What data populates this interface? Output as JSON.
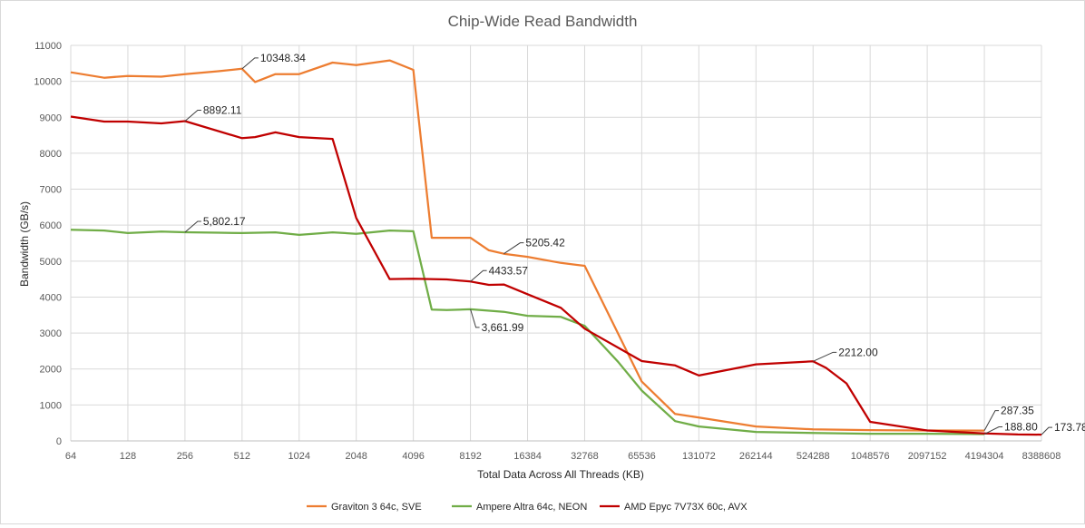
{
  "chart_data": {
    "type": "line",
    "title": "Chip-Wide Read Bandwidth",
    "xlabel": "Total Data Across All Threads (KB)",
    "ylabel": "Bandwidth (GB/s)",
    "x_scale": "log2",
    "xlim": [
      64,
      8388608
    ],
    "ylim": [
      0,
      11000
    ],
    "x_ticks": [
      64,
      128,
      256,
      512,
      1024,
      2048,
      4096,
      8192,
      16384,
      32768,
      65536,
      131072,
      262144,
      524288,
      1048576,
      2097152,
      4194304,
      8388608
    ],
    "x_tick_labels": [
      "64",
      "128",
      "256",
      "512",
      "1024",
      "2048",
      "4096",
      "8192",
      "16384",
      "32768",
      "65536",
      "131072",
      "262144",
      "524288",
      "1048576",
      "2097152",
      "4194304",
      "8388608"
    ],
    "y_ticks": [
      0,
      1000,
      2000,
      3000,
      4000,
      5000,
      6000,
      7000,
      8000,
      9000,
      10000,
      11000
    ],
    "y_tick_labels": [
      "0",
      "1000",
      "2000",
      "3000",
      "4000",
      "5000",
      "6000",
      "7000",
      "8000",
      "9000",
      "10000",
      "11000"
    ],
    "grid": "horizontal and vertical",
    "legend_position": "bottom",
    "series": [
      {
        "name": "Graviton 3 64c, SVE",
        "color": "#ed7d31",
        "points": [
          [
            64,
            10250
          ],
          [
            96,
            10100
          ],
          [
            128,
            10150
          ],
          [
            192,
            10130
          ],
          [
            256,
            10200
          ],
          [
            384,
            10280
          ],
          [
            512,
            10348.34
          ],
          [
            600,
            9980
          ],
          [
            768,
            10200
          ],
          [
            1024,
            10200
          ],
          [
            1536,
            10520
          ],
          [
            2048,
            10450
          ],
          [
            3072,
            10580
          ],
          [
            4096,
            10320
          ],
          [
            5120,
            5650
          ],
          [
            6144,
            5650
          ],
          [
            8192,
            5650
          ],
          [
            10240,
            5300
          ],
          [
            12288,
            5205.42
          ],
          [
            16384,
            5120
          ],
          [
            24576,
            4950
          ],
          [
            32768,
            4870
          ],
          [
            65536,
            1650
          ],
          [
            98304,
            750
          ],
          [
            131072,
            650
          ],
          [
            262144,
            400
          ],
          [
            524288,
            320
          ],
          [
            1048576,
            300
          ],
          [
            2097152,
            290
          ],
          [
            4194304,
            287.35
          ]
        ]
      },
      {
        "name": "Ampere Altra 64c, NEON",
        "color": "#70ad47",
        "points": [
          [
            64,
            5870
          ],
          [
            96,
            5850
          ],
          [
            128,
            5780
          ],
          [
            192,
            5820
          ],
          [
            256,
            5802.17
          ],
          [
            384,
            5790
          ],
          [
            512,
            5780
          ],
          [
            768,
            5800
          ],
          [
            1024,
            5730
          ],
          [
            1536,
            5800
          ],
          [
            2048,
            5760
          ],
          [
            3072,
            5850
          ],
          [
            4096,
            5830
          ],
          [
            5120,
            3650
          ],
          [
            6144,
            3640
          ],
          [
            8192,
            3661.99
          ],
          [
            12288,
            3590
          ],
          [
            16384,
            3480
          ],
          [
            24576,
            3450
          ],
          [
            32768,
            3200
          ],
          [
            49152,
            2200
          ],
          [
            65536,
            1400
          ],
          [
            98304,
            550
          ],
          [
            131072,
            400
          ],
          [
            262144,
            250
          ],
          [
            524288,
            220
          ],
          [
            1048576,
            200
          ],
          [
            2097152,
            200
          ],
          [
            4194304,
            188.8
          ]
        ]
      },
      {
        "name": "AMD Epyc 7V73X 60c, AVX",
        "color": "#c00000",
        "points": [
          [
            64,
            9020
          ],
          [
            96,
            8880
          ],
          [
            128,
            8880
          ],
          [
            192,
            8830
          ],
          [
            256,
            8892.11
          ],
          [
            512,
            8420
          ],
          [
            600,
            8450
          ],
          [
            768,
            8580
          ],
          [
            1024,
            8450
          ],
          [
            1536,
            8400
          ],
          [
            2048,
            6200
          ],
          [
            3072,
            4500
          ],
          [
            4096,
            4510
          ],
          [
            6144,
            4490
          ],
          [
            8192,
            4433.57
          ],
          [
            10240,
            4340
          ],
          [
            12288,
            4350
          ],
          [
            16384,
            4080
          ],
          [
            24576,
            3700
          ],
          [
            32768,
            3120
          ],
          [
            65536,
            2220
          ],
          [
            98304,
            2100
          ],
          [
            131072,
            1820
          ],
          [
            262144,
            2130
          ],
          [
            524288,
            2212.0
          ],
          [
            614400,
            2030
          ],
          [
            786432,
            1600
          ],
          [
            1048576,
            530
          ],
          [
            2097152,
            290
          ],
          [
            4194304,
            210
          ],
          [
            6291456,
            180
          ],
          [
            8388608,
            173.78
          ]
        ]
      }
    ],
    "annotations": [
      {
        "series": 0,
        "x": 512,
        "y": 10348.34,
        "text": "10348.34",
        "dx": 14,
        "dy": -12
      },
      {
        "series": 2,
        "x": 256,
        "y": 8892.11,
        "text": "8892.11",
        "dx": 14,
        "dy": -12
      },
      {
        "series": 1,
        "x": 256,
        "y": 5802.17,
        "text": "5,802.17",
        "dx": 14,
        "dy": -12
      },
      {
        "series": 0,
        "x": 12288,
        "y": 5205.42,
        "text": "5205.42",
        "dx": 18,
        "dy": -12
      },
      {
        "series": 2,
        "x": 8192,
        "y": 4433.57,
        "text": "4433.57",
        "dx": 14,
        "dy": -12
      },
      {
        "series": 1,
        "x": 8192,
        "y": 3661.99,
        "text": "3,661.99",
        "dx": 6,
        "dy": 20
      },
      {
        "series": 2,
        "x": 524288,
        "y": 2212.0,
        "text": "2212.00",
        "dx": 22,
        "dy": -10
      },
      {
        "series": 0,
        "x": 4194304,
        "y": 287.35,
        "text": "287.35",
        "dx": 12,
        "dy": -22
      },
      {
        "series": 1,
        "x": 4194304,
        "y": 188.8,
        "text": "188.80",
        "dx": 16,
        "dy": -8
      },
      {
        "series": 2,
        "x": 8388608,
        "y": 173.78,
        "text": "173.78",
        "dx": 8,
        "dy": -8
      }
    ]
  }
}
